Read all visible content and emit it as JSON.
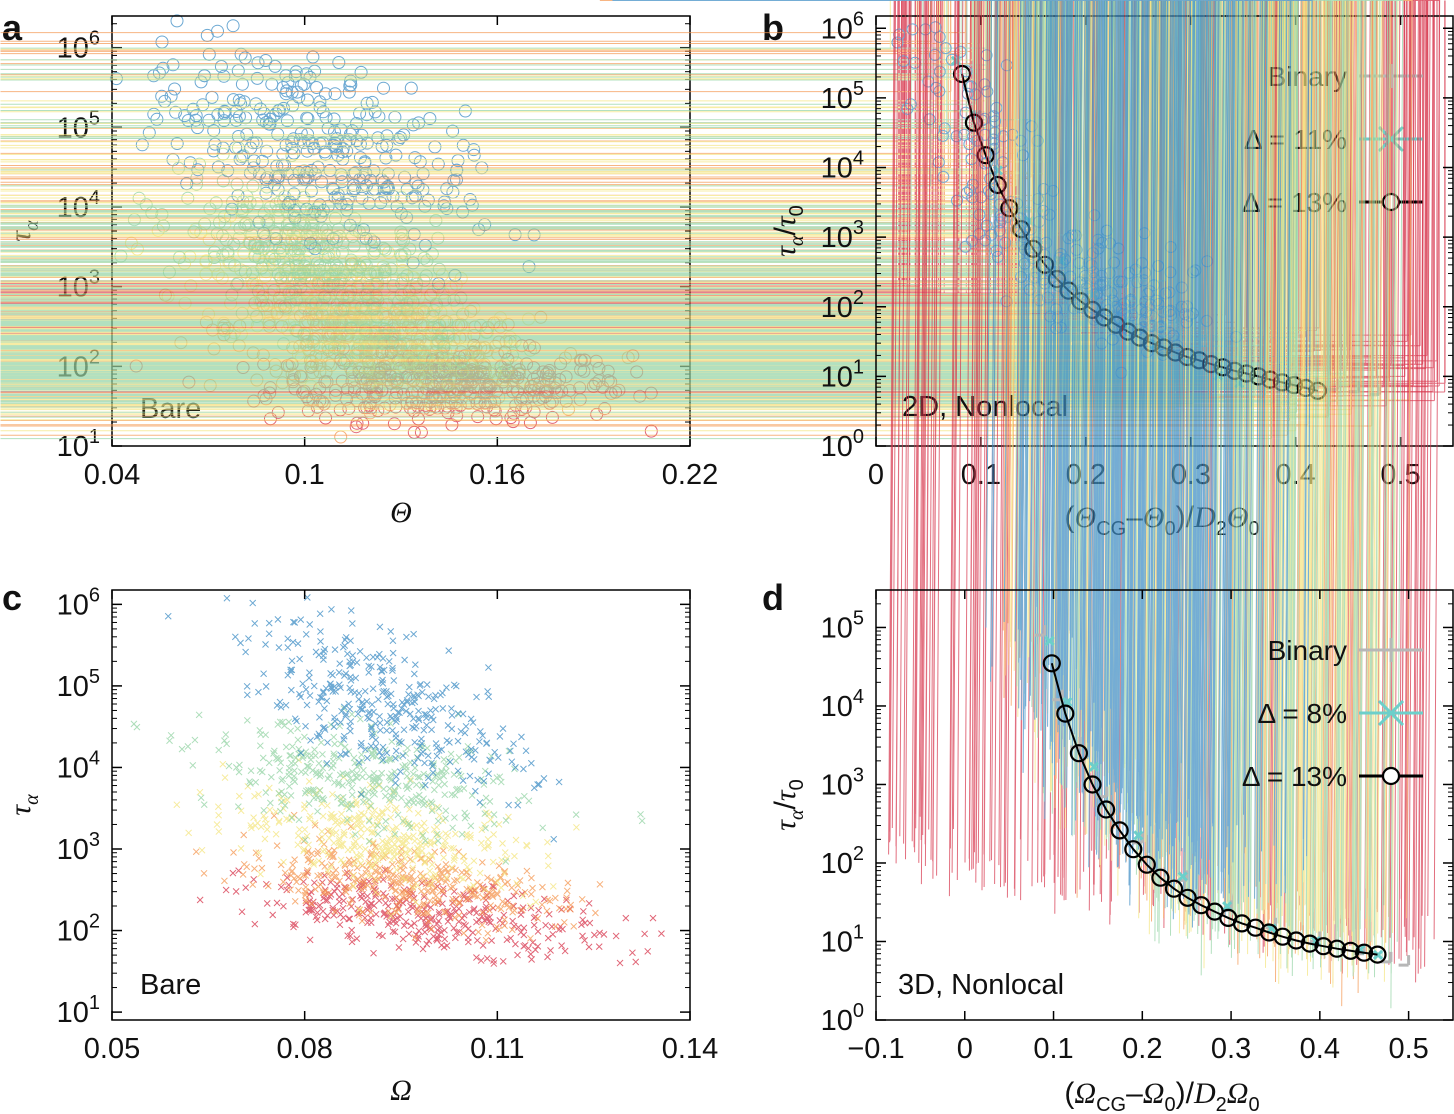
{
  "figure": {
    "panels": [
      {
        "id": "a",
        "letter": "a",
        "xlabel": "Θ",
        "ylabel": "τα",
        "note": "Bare"
      },
      {
        "id": "b",
        "letter": "b",
        "xlabel": "(ΘCG−Θ0)/D2Θ0",
        "ylabel": "τα/τ0",
        "note": "2D, Nonlocal"
      },
      {
        "id": "c",
        "letter": "c",
        "xlabel": "Ω",
        "ylabel": "τα",
        "note": "Bare"
      },
      {
        "id": "d",
        "letter": "d",
        "xlabel": "(ΩCG−Ω0)/D2Ω0",
        "ylabel": "τα/τ0",
        "note": "3D, Nonlocal"
      }
    ],
    "colors": {
      "blue": "#3a8bc4",
      "green": "#93d3a4",
      "yellow": "#f4e57e",
      "orange": "#f5964f",
      "red": "#d7334a",
      "binary": "#b7b7b7",
      "cyan": "#6ccfca",
      "black": "#000000"
    }
  },
  "chart_data": [
    {
      "id": "a",
      "type": "scatter",
      "marker": "circle",
      "title": "",
      "xlabel": "Θ",
      "ylabel": "τα",
      "yscale": "log",
      "xlim": [
        0.04,
        0.22
      ],
      "ylim": [
        10,
        2500000
      ],
      "xticks": [
        {
          "v": 0.04,
          "label": "0.04"
        },
        {
          "v": 0.1,
          "label": "0.1"
        },
        {
          "v": 0.16,
          "label": "0.16"
        },
        {
          "v": 0.22,
          "label": "0.22"
        }
      ],
      "yticks": [
        {
          "v": 10,
          "base": "10",
          "exp": "1"
        },
        {
          "v": 100,
          "base": "10",
          "exp": "2"
        },
        {
          "v": 1000,
          "base": "10",
          "exp": "3"
        },
        {
          "v": 10000,
          "base": "10",
          "exp": "4"
        },
        {
          "v": 100000,
          "base": "10",
          "exp": "5"
        },
        {
          "v": 1000000,
          "base": "10",
          "exp": "6"
        }
      ],
      "annotation": "Bare",
      "series": [
        {
          "name": "red",
          "color": "red",
          "center_x": 0.145,
          "center_logy": 1.75,
          "trend": 0,
          "sx": 0.028,
          "sy": 0.22
        },
        {
          "name": "orange",
          "color": "orange",
          "center_x": 0.125,
          "center_logy": 2.25,
          "trend": -5,
          "sx": 0.024,
          "sy": 0.3
        },
        {
          "name": "yellow",
          "color": "yellow",
          "center_x": 0.112,
          "center_logy": 2.75,
          "trend": -10,
          "sx": 0.022,
          "sy": 0.35
        },
        {
          "name": "green",
          "color": "green",
          "center_x": 0.105,
          "center_logy": 3.3,
          "trend": -14,
          "sx": 0.022,
          "sy": 0.45
        },
        {
          "name": "blue",
          "color": "blue",
          "center_x": 0.1,
          "center_logy": 4.8,
          "trend": -14,
          "sx": 0.025,
          "sy": 0.55
        }
      ]
    },
    {
      "id": "b",
      "type": "scatter",
      "marker": "plus",
      "title": "",
      "xlabel": "(ΘCG−Θ0)/D2Θ0",
      "ylabel": "τα/τ0",
      "yscale": "log",
      "xlim": [
        0,
        0.55
      ],
      "ylim": [
        1,
        1500000
      ],
      "xticks": [
        {
          "v": 0,
          "label": "0"
        },
        {
          "v": 0.1,
          "label": "0.1"
        },
        {
          "v": 0.2,
          "label": "0.2"
        },
        {
          "v": 0.3,
          "label": "0.3"
        },
        {
          "v": 0.4,
          "label": "0.4"
        },
        {
          "v": 0.5,
          "label": "0.5"
        }
      ],
      "yticks": [
        {
          "v": 1,
          "base": "10",
          "exp": "0"
        },
        {
          "v": 10,
          "base": "10",
          "exp": "1"
        },
        {
          "v": 100,
          "base": "10",
          "exp": "2"
        },
        {
          "v": 1000,
          "base": "10",
          "exp": "3"
        },
        {
          "v": 10000,
          "base": "10",
          "exp": "4"
        },
        {
          "v": 100000,
          "base": "10",
          "exp": "5"
        },
        {
          "v": 1000000,
          "base": "10",
          "exp": "6"
        }
      ],
      "annotation": "2D, Nonlocal",
      "legend_position": "top-right",
      "legend": [
        {
          "label": "Binary",
          "marker": "plus",
          "color": "binary"
        },
        {
          "label": "Δ = 11%",
          "marker": "cross",
          "color": "cyan"
        },
        {
          "label": "Δ = 13%",
          "marker": "circle",
          "color": "black"
        }
      ],
      "series": [
        {
          "name": "Binary",
          "color": "binary",
          "marker": "plus",
          "x": [
            0.4,
            0.42,
            0.44,
            0.46,
            0.48
          ],
          "y": [
            8,
            7,
            6.5,
            6,
            5.5
          ]
        },
        {
          "name": "Δ = 11%",
          "color": "cyan",
          "marker": "cross",
          "x": [
            0.08,
            0.1,
            0.12,
            0.15,
            0.18,
            0.21,
            0.24,
            0.27,
            0.3,
            0.33,
            0.35
          ],
          "y": [
            300000,
            50000,
            8000,
            1500,
            400,
            130,
            50,
            25,
            14,
            9,
            7
          ]
        },
        {
          "name": "Δ = 13%",
          "color": "black",
          "marker": "circle",
          "x": [
            0.082,
            0.0933,
            0.1046,
            0.1159,
            0.1272,
            0.1385,
            0.1498,
            0.1611,
            0.1724,
            0.1837,
            0.195,
            0.2063,
            0.2176,
            0.2289,
            0.2402,
            0.2515,
            0.2628,
            0.2741,
            0.2854,
            0.2967,
            0.308,
            0.3193,
            0.3306,
            0.3419,
            0.3532,
            0.3645,
            0.3758,
            0.3871,
            0.3984,
            0.4097,
            0.421
          ],
          "y": [
            220000,
            44000,
            15000,
            5600,
            2600,
            1300,
            680,
            400,
            250,
            170,
            120,
            90,
            70,
            55,
            44,
            36,
            30,
            26,
            22,
            19,
            17,
            15,
            13.5,
            12,
            11,
            10,
            9,
            8.2,
            7.5,
            6.8,
            6.2
          ]
        }
      ]
    },
    {
      "id": "c",
      "type": "scatter",
      "marker": "cross",
      "title": "",
      "xlabel": "Ω",
      "ylabel": "τα",
      "yscale": "log",
      "xlim": [
        0.05,
        0.14
      ],
      "ylim": [
        8,
        1500000
      ],
      "xticks": [
        {
          "v": 0.05,
          "label": "0.05"
        },
        {
          "v": 0.08,
          "label": "0.08"
        },
        {
          "v": 0.11,
          "label": "0.11"
        },
        {
          "v": 0.14,
          "label": "0.14"
        }
      ],
      "yticks": [
        {
          "v": 10,
          "base": "10",
          "exp": "1"
        },
        {
          "v": 100,
          "base": "10",
          "exp": "2"
        },
        {
          "v": 1000,
          "base": "10",
          "exp": "3"
        },
        {
          "v": 10000,
          "base": "10",
          "exp": "4"
        },
        {
          "v": 100000,
          "base": "10",
          "exp": "5"
        },
        {
          "v": 1000000,
          "base": "10",
          "exp": "6"
        }
      ],
      "annotation": "Bare",
      "series": [
        {
          "name": "red",
          "color": "red",
          "center_x": 0.1,
          "center_logy": 2.15,
          "trend": -9,
          "sx": 0.014,
          "sy": 0.2
        },
        {
          "name": "orange",
          "color": "orange",
          "center_x": 0.095,
          "center_logy": 2.55,
          "trend": -10,
          "sx": 0.013,
          "sy": 0.22
        },
        {
          "name": "yellow",
          "color": "yellow",
          "center_x": 0.093,
          "center_logy": 3.1,
          "trend": -12,
          "sx": 0.012,
          "sy": 0.28
        },
        {
          "name": "green",
          "color": "green",
          "center_x": 0.09,
          "center_logy": 3.8,
          "trend": -12,
          "sx": 0.012,
          "sy": 0.3
        },
        {
          "name": "blue",
          "color": "blue",
          "center_x": 0.093,
          "center_logy": 4.7,
          "trend": -30,
          "sx": 0.011,
          "sy": 0.4
        }
      ]
    },
    {
      "id": "d",
      "type": "scatter",
      "marker": "cross",
      "title": "",
      "xlabel": "(ΩCG−Ω0)/D2Ω0",
      "ylabel": "τα/τ0",
      "yscale": "log",
      "xlim": [
        -0.1,
        0.55
      ],
      "ylim": [
        1,
        300000
      ],
      "xticks": [
        {
          "v": -0.1,
          "label": "−0.1"
        },
        {
          "v": 0,
          "label": "0"
        },
        {
          "v": 0.1,
          "label": "0.1"
        },
        {
          "v": 0.2,
          "label": "0.2"
        },
        {
          "v": 0.3,
          "label": "0.3"
        },
        {
          "v": 0.4,
          "label": "0.4"
        },
        {
          "v": 0.5,
          "label": "0.5"
        }
      ],
      "yticks": [
        {
          "v": 1,
          "base": "10",
          "exp": "0"
        },
        {
          "v": 10,
          "base": "10",
          "exp": "1"
        },
        {
          "v": 100,
          "base": "10",
          "exp": "2"
        },
        {
          "v": 1000,
          "base": "10",
          "exp": "3"
        },
        {
          "v": 10000,
          "base": "10",
          "exp": "4"
        },
        {
          "v": 100000,
          "base": "10",
          "exp": "5"
        }
      ],
      "annotation": "3D, Nonlocal",
      "legend_position": "top-right",
      "legend": [
        {
          "label": "Binary",
          "marker": "plus",
          "color": "binary"
        },
        {
          "label": "Δ = 8%",
          "marker": "cross",
          "color": "cyan"
        },
        {
          "label": "Δ = 13%",
          "marker": "circle",
          "color": "black"
        }
      ],
      "series": [
        {
          "name": "Binary",
          "color": "binary",
          "marker": "plus",
          "x": [
            0.09,
            0.11,
            0.13,
            0.16,
            0.2,
            0.25,
            0.3,
            0.35,
            0.4,
            0.45,
            0.48,
            0.5
          ],
          "y": [
            80000,
            12000,
            3000,
            700,
            180,
            60,
            25,
            15,
            10,
            7,
            5.5,
            5
          ]
        },
        {
          "name": "Δ = 8%",
          "color": "cyan",
          "marker": "cross",
          "x": [
            0.1,
            0.12,
            0.15,
            0.2,
            0.25,
            0.3,
            0.35,
            0.4,
            0.45,
            0.47
          ],
          "y": [
            60000,
            10000,
            1500,
            200,
            60,
            25,
            13,
            9,
            7,
            6
          ]
        },
        {
          "name": "Δ = 13%",
          "color": "black",
          "marker": "circle",
          "x": [
            0.098,
            0.1133,
            0.1286,
            0.1439,
            0.1592,
            0.1745,
            0.1898,
            0.2051,
            0.2204,
            0.2357,
            0.251,
            0.2663,
            0.2816,
            0.2969,
            0.3122,
            0.3275,
            0.3428,
            0.3581,
            0.3734,
            0.3887,
            0.404,
            0.4193,
            0.4346,
            0.4499,
            0.465
          ],
          "y": [
            35000,
            8000,
            2500,
            1000,
            480,
            260,
            150,
            95,
            65,
            47,
            36,
            29,
            24,
            20,
            17,
            15,
            13,
            11.5,
            10.3,
            9.4,
            8.7,
            8.1,
            7.6,
            7.2,
            6.8
          ]
        }
      ]
    }
  ]
}
